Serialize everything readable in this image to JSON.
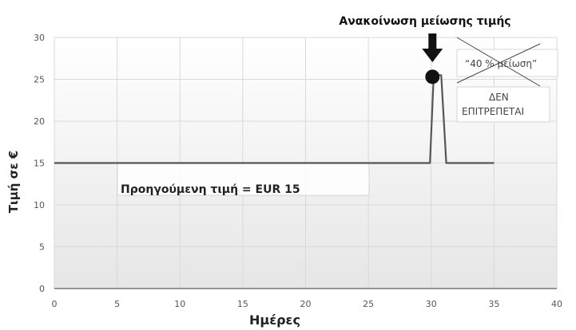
{
  "chart_data": {
    "type": "line",
    "title": "",
    "xlabel": "Ημέρες",
    "ylabel": "Τιμή σε €",
    "xlim": [
      0,
      40
    ],
    "ylim": [
      0,
      30
    ],
    "xticks": [
      0,
      5,
      10,
      15,
      20,
      25,
      30,
      35,
      40
    ],
    "yticks": [
      0,
      5,
      10,
      15,
      20,
      25,
      30
    ],
    "grid": true,
    "series": [
      {
        "color": "#555555",
        "x": [
          0,
          29.9,
          30.2,
          30.5,
          30.8,
          31.2,
          35
        ],
        "y": [
          15,
          15,
          25.5,
          25.5,
          25.5,
          15,
          15
        ]
      }
    ],
    "annotations": {
      "announcement": {
        "text": "Ανακοίνωση μείωσης τιμής",
        "x": 30.1,
        "y": 25.3
      },
      "reduction_label": "“40 % μείωση”",
      "not_allowed_line1": "ΔΕΝ",
      "not_allowed_line2": "ΕΠΙΤΡΕΠΕΤΑΙ",
      "previous_price": "Προηγούμενη τιμή  = EUR 15"
    }
  }
}
